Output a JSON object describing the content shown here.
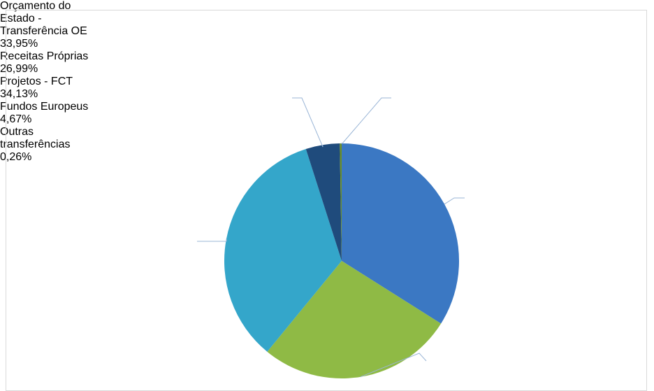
{
  "chart_data": {
    "type": "pie",
    "categories": [
      "Orçamento do Estado - Transferência OE",
      "Receitas Próprias",
      "Projetos - FCT",
      "Fundos Europeus",
      "Outras transferências"
    ],
    "values": [
      33.95,
      26.99,
      34.13,
      4.67,
      0.26
    ],
    "value_labels": [
      "33,95%",
      "26,99%",
      "34,13%",
      "4,67%",
      "0,26%"
    ],
    "colors": [
      "#3b78c3",
      "#8fba45",
      "#34a6ca",
      "#1f4b7c",
      "#6a8f2a"
    ]
  }
}
